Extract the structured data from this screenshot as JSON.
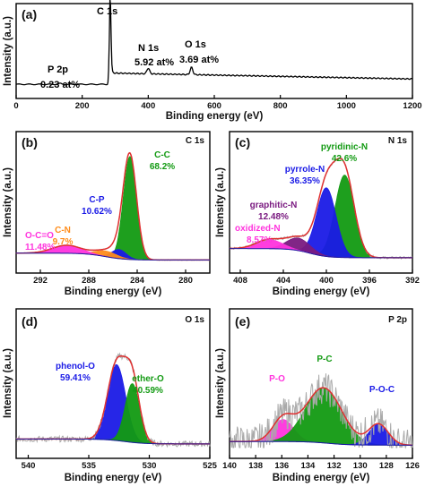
{
  "colors": {
    "raw": "#aaaaaa",
    "envelope": "#e03030",
    "background": "#1a1aa0",
    "blue": "#1a1ae6",
    "green": "#129a12",
    "magenta": "#ff33dd",
    "orange": "#ff8c1a",
    "purple": "#7a1a80",
    "black": "#000000"
  },
  "chart_data": [
    {
      "id": "a",
      "type": "line",
      "panel_label": "(a)",
      "xlabel": "Binding energy (eV)",
      "ylabel": "Intensity (a.u.)",
      "xlim": [
        0,
        1200
      ],
      "x_ticks": [
        0,
        200,
        400,
        600,
        800,
        1000,
        1200
      ],
      "annotations": [
        {
          "text": "C 1s",
          "x": 284
        },
        {
          "text": "N 1s",
          "x": 400
        },
        {
          "text": "5.92 at%",
          "x": 400
        },
        {
          "text": "O 1s",
          "x": 531
        },
        {
          "text": "3.69 at%",
          "x": 531
        },
        {
          "text": "P 2p",
          "x": 133
        },
        {
          "text": "0.23 at%",
          "x": 133
        }
      ],
      "peaks": [
        {
          "x": 284.6,
          "height": 0.95
        },
        {
          "x": 400,
          "height": 0.07
        },
        {
          "x": 531,
          "height": 0.09
        },
        {
          "x": 133,
          "height": 0.01
        }
      ]
    },
    {
      "id": "b",
      "type": "line",
      "panel_label": "(b)",
      "region": "C 1s",
      "xlabel": "Binding energy (eV)",
      "ylabel": "Intensity (a.u.)",
      "xlim": [
        294,
        278
      ],
      "x_ticks": [
        292,
        288,
        284,
        280
      ],
      "components": [
        {
          "name": "C-C",
          "value": "68.2%",
          "center": 284.6,
          "height": 0.9,
          "width": 0.55,
          "color": "green"
        },
        {
          "name": "C-P",
          "value": "10.62%",
          "center": 285.5,
          "height": 0.08,
          "width": 0.6,
          "color": "blue"
        },
        {
          "name": "C-N",
          "value": "9.7%",
          "center": 286.6,
          "height": 0.05,
          "width": 0.9,
          "color": "orange"
        },
        {
          "name": "O-C=O",
          "value": "11.48%",
          "center": 289.8,
          "height": 0.07,
          "width": 1.2,
          "color": "magenta"
        }
      ]
    },
    {
      "id": "c",
      "type": "line",
      "panel_label": "(c)",
      "region": "N 1s",
      "xlabel": "Binding energy (eV)",
      "ylabel": "Intensity (a.u.)",
      "xlim": [
        409,
        392
      ],
      "x_ticks": [
        408,
        404,
        400,
        396,
        392
      ],
      "components": [
        {
          "name": "pyridinic-N",
          "value": "42.6%",
          "center": 398.3,
          "height": 0.72,
          "width": 0.9,
          "color": "green"
        },
        {
          "name": "pyrrole-N",
          "value": "36.35%",
          "center": 400.0,
          "height": 0.6,
          "width": 0.9,
          "color": "blue"
        },
        {
          "name": "graphitic-N",
          "value": "12.48%",
          "center": 402.6,
          "height": 0.11,
          "width": 1.1,
          "color": "purple"
        },
        {
          "name": "oxidized-N",
          "value": "8.57%",
          "center": 405.3,
          "height": 0.08,
          "width": 1.2,
          "color": "magenta"
        }
      ]
    },
    {
      "id": "d",
      "type": "line",
      "panel_label": "(d)",
      "region": "O 1s",
      "xlabel": "Binding energy (eV)",
      "ylabel": "Intensity (a.u.)",
      "xlim": [
        541,
        525
      ],
      "x_ticks": [
        540,
        535,
        530,
        525
      ],
      "components": [
        {
          "name": "phenol-O",
          "value": "59.41%",
          "center": 532.7,
          "height": 0.62,
          "width": 0.75,
          "color": "blue"
        },
        {
          "name": "ether-O",
          "value": "40.59%",
          "center": 531.4,
          "height": 0.48,
          "width": 0.6,
          "color": "green"
        }
      ]
    },
    {
      "id": "e",
      "type": "line",
      "panel_label": "(e)",
      "region": "P 2p",
      "xlabel": "Binding energy (eV)",
      "ylabel": "Intensity (a.u.)",
      "xlim": [
        140,
        126
      ],
      "x_ticks": [
        140,
        138,
        136,
        134,
        132,
        130,
        128,
        126
      ],
      "components": [
        {
          "name": "P-O",
          "value": "",
          "center": 135.9,
          "height": 0.18,
          "width": 0.8,
          "color": "magenta"
        },
        {
          "name": "P-C",
          "value": "",
          "center": 132.8,
          "height": 0.45,
          "width": 1.4,
          "color": "green"
        },
        {
          "name": "P-O-C",
          "value": "",
          "center": 128.6,
          "height": 0.17,
          "width": 0.75,
          "color": "blue"
        }
      ]
    }
  ]
}
